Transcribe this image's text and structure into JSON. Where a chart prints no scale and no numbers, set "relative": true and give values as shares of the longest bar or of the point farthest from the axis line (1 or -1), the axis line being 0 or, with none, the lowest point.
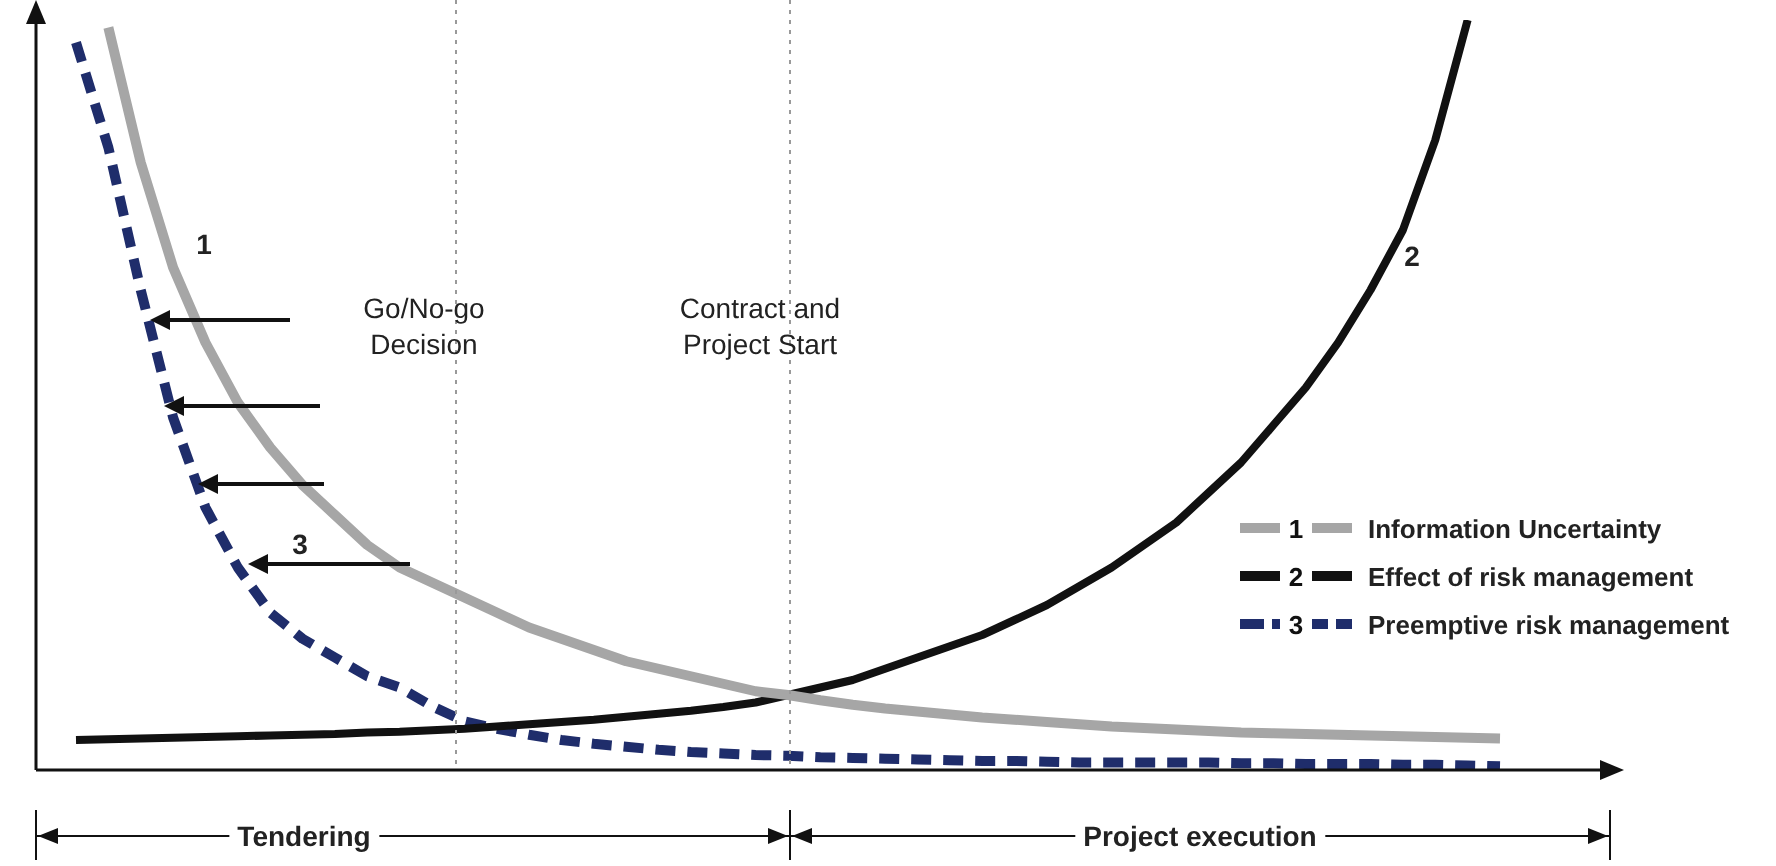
{
  "chart_data": {
    "type": "line",
    "relative": true,
    "legend": "right",
    "marker": "none",
    "categories": [
      null,
      null,
      null,
      null,
      null,
      null,
      null,
      null,
      null,
      null,
      null,
      null,
      null,
      null,
      null,
      null,
      null,
      null,
      null,
      null,
      null,
      null,
      null,
      null,
      null,
      null,
      null,
      null,
      null,
      null,
      null,
      null,
      null,
      null,
      null,
      null,
      null,
      null,
      null,
      null,
      null,
      null,
      null,
      null,
      null
    ],
    "series": [
      {
        "name": "Information Uncertainty",
        "color": "#a6a6a6",
        "line_style": "solid",
        "values": [
          null,
          0.99,
          0.81,
          0.67,
          0.57,
          0.49,
          0.43,
          0.38,
          0.34,
          0.3,
          0.27,
          0.25,
          0.23,
          0.21,
          0.19,
          0.175,
          0.16,
          0.145,
          0.135,
          0.125,
          0.115,
          0.105,
          0.1,
          0.093,
          0.087,
          0.082,
          0.078,
          0.074,
          0.07,
          0.067,
          0.064,
          0.061,
          0.058,
          0.056,
          0.054,
          0.052,
          0.05,
          0.049,
          0.048,
          0.047,
          0.046,
          0.045,
          0.044,
          0.043,
          0.042
        ]
      },
      {
        "name": "Effect of risk management",
        "color": "#111111",
        "line_style": "solid",
        "values": [
          0.04,
          0.041,
          0.042,
          0.043,
          0.044,
          0.045,
          0.046,
          0.047,
          0.048,
          0.05,
          0.051,
          0.053,
          0.055,
          0.058,
          0.061,
          0.064,
          0.067,
          0.071,
          0.075,
          0.079,
          0.084,
          0.09,
          0.1,
          0.11,
          0.12,
          0.135,
          0.15,
          0.165,
          0.18,
          0.2,
          0.22,
          0.245,
          0.27,
          0.3,
          0.33,
          0.37,
          0.41,
          0.46,
          0.51,
          0.57,
          0.64,
          0.72,
          0.84,
          1.0,
          null
        ]
      },
      {
        "name": "Preemptive risk management",
        "color": "#1f2d6b",
        "line_style": "dashed",
        "values": [
          0.97,
          0.83,
          0.64,
          0.47,
          0.35,
          0.27,
          0.21,
          0.175,
          0.15,
          0.125,
          0.11,
          0.085,
          0.065,
          0.055,
          0.047,
          0.04,
          0.035,
          0.031,
          0.027,
          0.024,
          0.022,
          0.02,
          0.019,
          0.017,
          0.016,
          0.015,
          0.014,
          0.013,
          0.012,
          0.012,
          0.011,
          0.01,
          0.01,
          0.01,
          0.01,
          0.01,
          0.009,
          0.009,
          0.008,
          0.008,
          0.008,
          0.007,
          0.007,
          0.006,
          0.005
        ]
      }
    ],
    "annotations": [
      "1",
      "2",
      "3",
      "Go/No-go Decision",
      "Contract and Project Start",
      "Tendering",
      "Project execution"
    ]
  }
}
